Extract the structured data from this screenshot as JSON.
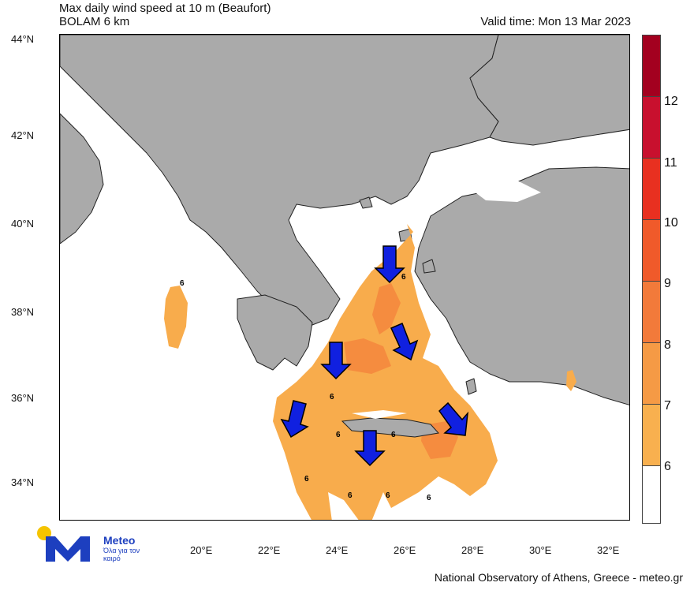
{
  "header": {
    "title_line1": "Max daily wind speed at 10 m (Beaufort)",
    "title_line2": "BOLAM 6 km",
    "valid_time": "Valid time: Mon 13 Mar 2023"
  },
  "axes": {
    "latitudes": [
      "44°N",
      "42°N",
      "40°N",
      "38°N",
      "36°N",
      "34°N"
    ],
    "longitudes": [
      "20°E",
      "22°E",
      "24°E",
      "26°E",
      "28°E",
      "30°E",
      "32°E"
    ]
  },
  "colorbar": {
    "labels": [
      "12",
      "11",
      "10",
      "9",
      "8",
      "7",
      "6"
    ],
    "colors": [
      "#a3001f",
      "#c8102e",
      "#e83020",
      "#f05a2a",
      "#f27a3a",
      "#f59a45",
      "#f8b04f",
      "#ffffff"
    ]
  },
  "map_colors": {
    "land": "#aaaaaa",
    "sea": "#ffffff",
    "wind_6": "#f8ac4c",
    "wind_7": "#f58c3f",
    "arrow": "#1020e0"
  },
  "contour_labels": [
    "6",
    "6",
    "6",
    "6",
    "6",
    "6",
    "6",
    "6",
    "6"
  ],
  "wind_arrows": [
    "arrow-s",
    "arrow-s",
    "arrow-sse",
    "arrow-ssw",
    "arrow-s",
    "arrow-se"
  ],
  "logo": {
    "name": "Meteo",
    "tagline": "Όλα για τον καιρό"
  },
  "footer": "National Observatory of Athens, Greece - meteo.gr"
}
